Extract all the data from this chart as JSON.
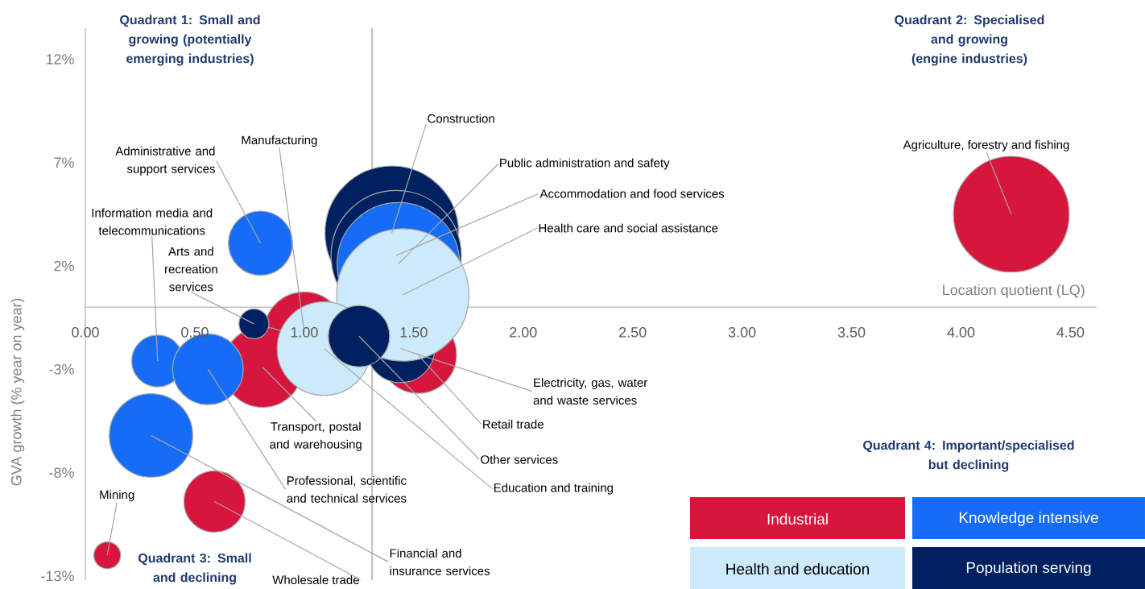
{
  "chart_data": {
    "type": "bubble",
    "xlabel": "Location quotient (LQ)",
    "ylabel": "GVA growth (% year on year)",
    "xlim": [
      0,
      4.62
    ],
    "ylim": [
      -13.2,
      13.5
    ],
    "xticks": [
      {
        "value": 0,
        "label": "0.00"
      },
      {
        "value": 0.5,
        "label": "0.50"
      },
      {
        "value": 1,
        "label": "1.00"
      },
      {
        "value": 1.5,
        "label": "1.50"
      },
      {
        "value": 2,
        "label": "2.00"
      },
      {
        "value": 2.5,
        "label": "2.50"
      },
      {
        "value": 3,
        "label": "3.00"
      },
      {
        "value": 3.5,
        "label": "3.50"
      },
      {
        "value": 4,
        "label": "4.00"
      },
      {
        "value": 4.5,
        "label": "4.50"
      }
    ],
    "yticks": [
      {
        "value": -13,
        "label": "-13%"
      },
      {
        "value": -8,
        "label": "-8%"
      },
      {
        "value": -3,
        "label": "-3%"
      },
      {
        "value": 2,
        "label": "2%"
      },
      {
        "value": 7,
        "label": "7%"
      },
      {
        "value": 12,
        "label": "12%"
      }
    ],
    "grid": false,
    "legend": "bottom right",
    "ref_lines": [
      {
        "axis": "x",
        "value": 1.31,
        "color": "#bfbfbf"
      }
    ],
    "series": [
      {
        "name": "Industrial",
        "color": "#d7163d",
        "x": [
          4.23,
          1.0,
          0.81,
          1.52,
          0.59,
          0.1
        ],
        "values": [
          4.5,
          -1.2,
          -2.9,
          -2.3,
          -9.4,
          -12.0
        ],
        "sizes": [
          0.75,
          0.36,
          0.36,
          0.33,
          0.21,
          0.04
        ]
      },
      {
        "name": "Knowledge intensive",
        "color": "#166cf7",
        "x": [
          1.43,
          0.8,
          0.33,
          0.56,
          0.3
        ],
        "values": [
          2.1,
          3.1,
          -2.6,
          -3.0,
          -6.2
        ],
        "sizes": [
          0.84,
          0.23,
          0.15,
          0.28,
          0.39
        ]
      },
      {
        "name": "Health and education",
        "color": "#cdeafa",
        "x": [
          1.45,
          1.09
        ],
        "values": [
          0.6,
          -2.0
        ],
        "sizes": [
          0.98,
          0.49
        ]
      },
      {
        "name": "Population serving",
        "color": "#002060",
        "x": [
          1.4,
          1.42,
          0.77,
          1.25,
          1.44
        ],
        "values": [
          3.6,
          2.5,
          -0.8,
          -1.4,
          -2.0
        ],
        "sizes": [
          1.0,
          0.95,
          0.05,
          0.21,
          0.26
        ]
      }
    ],
    "annotations": [
      "Quadrant 1: Small and growing (potentially emerging industries)",
      "Quadrant 2: Specialised and growing (engine industries)",
      "Quadrant 3: Small and declining",
      "Quadrant 4: Important/specialised but declining",
      {
        "text": "Agriculture, forestry and fishing",
        "x": 4.23,
        "y": 4.5
      },
      {
        "text": "Construction",
        "x": 1.4,
        "y": 3.6
      },
      {
        "text": "Public administration and safety",
        "x": 1.43,
        "y": 2.1
      },
      {
        "text": "Accommodation and food services",
        "x": 1.42,
        "y": 2.5
      },
      {
        "text": "Health care and social assistance",
        "x": 1.45,
        "y": 0.6
      },
      {
        "text": "Administrative and support services",
        "x": 0.8,
        "y": 3.1
      },
      {
        "text": "Manufacturing",
        "x": 1.0,
        "y": -1.2
      },
      {
        "text": "Information media and telecommunications",
        "x": 0.33,
        "y": -2.6
      },
      {
        "text": "Arts and recreation services",
        "x": 0.77,
        "y": -0.8
      },
      {
        "text": "Transport, postal and warehousing",
        "x": 0.81,
        "y": -2.9
      },
      {
        "text": "Professional, scientific and technical services",
        "x": 0.56,
        "y": -3.0
      },
      {
        "text": "Education and training",
        "x": 1.09,
        "y": -2.0
      },
      {
        "text": "Other services",
        "x": 1.25,
        "y": -1.4
      },
      {
        "text": "Electricity, gas, water and waste services",
        "x": 1.44,
        "y": -2.0
      },
      {
        "text": "Retail trade",
        "x": 1.52,
        "y": -2.3
      },
      {
        "text": "Financial and insurance services",
        "x": 0.3,
        "y": -6.2
      },
      {
        "text": "Wholesale trade",
        "x": 0.59,
        "y": -9.4
      },
      {
        "text": "Mining",
        "x": 0.1,
        "y": -12.0
      }
    ]
  }
}
